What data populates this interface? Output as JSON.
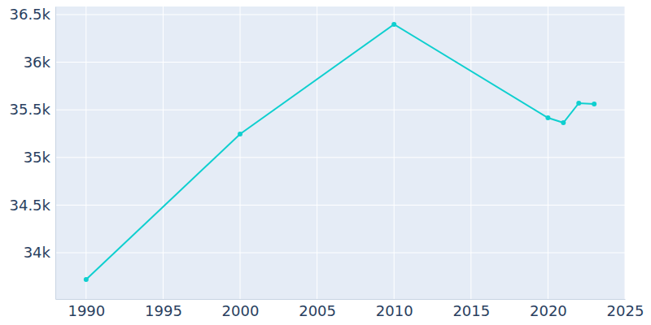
{
  "chart_data": {
    "type": "line",
    "x": [
      1990,
      2000,
      2010,
      2020,
      2021,
      2022,
      2023
    ],
    "values": [
      33718,
      35246,
      36398,
      35416,
      35365,
      35570,
      35561
    ],
    "color": "#0fcfcf",
    "marker": "circle",
    "xlim": [
      1988,
      2025
    ],
    "xticks": [
      1990,
      1995,
      2000,
      2005,
      2010,
      2015,
      2020,
      2025
    ],
    "ylim": [
      33514,
      36585
    ],
    "yticks": [
      {
        "value": 34000,
        "label": "34k"
      },
      {
        "value": 34500,
        "label": "34.5k"
      },
      {
        "value": 35000,
        "label": "35k"
      },
      {
        "value": 35500,
        "label": "35.5k"
      },
      {
        "value": 36000,
        "label": "36k"
      },
      {
        "value": 36500,
        "label": "36.5k"
      }
    ],
    "grid": true
  }
}
